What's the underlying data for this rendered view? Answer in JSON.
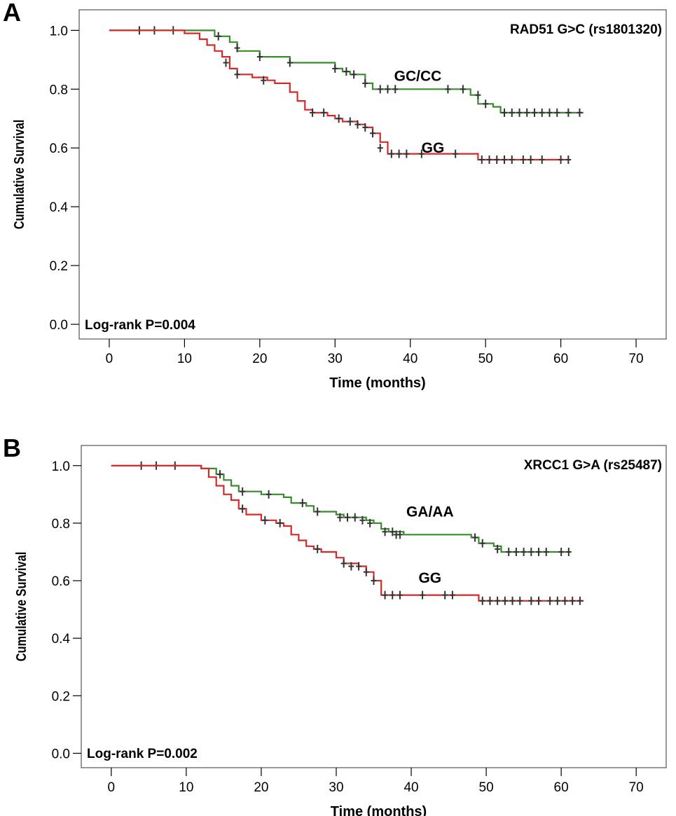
{
  "chart_data": [
    {
      "type": "line",
      "panel_label": "A",
      "title": "RAD51 G>C (rs1801320)",
      "xlabel": "Time (months)",
      "ylabel": "Cumulative Survival",
      "xlim": [
        -4,
        74
      ],
      "ylim": [
        -0.05,
        1.07
      ],
      "xticks": [
        0,
        10,
        20,
        30,
        40,
        50,
        60,
        70
      ],
      "yticks": [
        0.0,
        0.2,
        0.4,
        0.6,
        0.8,
        1.0
      ],
      "ytick_labels": [
        "0.0",
        "0.2",
        "0.4",
        "0.6",
        "0.8",
        "1.0"
      ],
      "annotation": "Log-rank P=0.004",
      "grid": false,
      "series": [
        {
          "name": "GC/CC",
          "color": "#3a8a2e",
          "label_pos": [
            41,
            0.845
          ],
          "steps": [
            [
              0,
              1.0
            ],
            [
              14,
              0.98
            ],
            [
              16,
              0.96
            ],
            [
              17,
              0.93
            ],
            [
              20,
              0.91
            ],
            [
              24,
              0.89
            ],
            [
              30,
              0.87
            ],
            [
              31,
              0.86
            ],
            [
              32,
              0.85
            ],
            [
              34,
              0.82
            ],
            [
              35,
              0.8
            ],
            [
              48,
              0.78
            ],
            [
              49,
              0.75
            ],
            [
              51,
              0.74
            ],
            [
              52,
              0.72
            ],
            [
              63,
              0.72
            ]
          ],
          "censored": [
            [
              4,
              1.0
            ],
            [
              6,
              1.0
            ],
            [
              8.5,
              1.0
            ],
            [
              14.5,
              0.98
            ],
            [
              17,
              0.94
            ],
            [
              20,
              0.91
            ],
            [
              24,
              0.89
            ],
            [
              30,
              0.87
            ],
            [
              31.5,
              0.86
            ],
            [
              32.5,
              0.85
            ],
            [
              34,
              0.82
            ],
            [
              36,
              0.8
            ],
            [
              37,
              0.8
            ],
            [
              38,
              0.8
            ],
            [
              45,
              0.8
            ],
            [
              47,
              0.8
            ],
            [
              49,
              0.78
            ],
            [
              50,
              0.75
            ],
            [
              52.5,
              0.72
            ],
            [
              53.5,
              0.72
            ],
            [
              54.5,
              0.72
            ],
            [
              55.5,
              0.72
            ],
            [
              56.5,
              0.72
            ],
            [
              57.5,
              0.72
            ],
            [
              58.5,
              0.72
            ],
            [
              59.5,
              0.72
            ],
            [
              61,
              0.72
            ],
            [
              62.5,
              0.72
            ]
          ]
        },
        {
          "name": "GG",
          "color": "#d42a2a",
          "label_pos": [
            43,
            0.6
          ],
          "steps": [
            [
              0,
              1.0
            ],
            [
              10,
              0.99
            ],
            [
              12,
              0.97
            ],
            [
              13,
              0.95
            ],
            [
              14,
              0.93
            ],
            [
              15,
              0.91
            ],
            [
              16,
              0.87
            ],
            [
              17,
              0.85
            ],
            [
              19,
              0.84
            ],
            [
              21,
              0.83
            ],
            [
              22,
              0.82
            ],
            [
              24,
              0.79
            ],
            [
              25,
              0.76
            ],
            [
              26,
              0.73
            ],
            [
              27,
              0.72
            ],
            [
              29,
              0.71
            ],
            [
              30,
              0.7
            ],
            [
              31,
              0.69
            ],
            [
              33,
              0.68
            ],
            [
              34,
              0.67
            ],
            [
              35,
              0.65
            ],
            [
              36,
              0.62
            ],
            [
              37,
              0.58
            ],
            [
              49,
              0.56
            ],
            [
              61,
              0.56
            ]
          ],
          "censored": [
            [
              15.5,
              0.89
            ],
            [
              17,
              0.85
            ],
            [
              20.5,
              0.83
            ],
            [
              27,
              0.72
            ],
            [
              28.5,
              0.72
            ],
            [
              30.5,
              0.7
            ],
            [
              32,
              0.69
            ],
            [
              33,
              0.68
            ],
            [
              34,
              0.67
            ],
            [
              35,
              0.65
            ],
            [
              36,
              0.6
            ],
            [
              37.5,
              0.58
            ],
            [
              38.5,
              0.58
            ],
            [
              39.5,
              0.58
            ],
            [
              41.5,
              0.58
            ],
            [
              46,
              0.58
            ],
            [
              49.5,
              0.56
            ],
            [
              50.5,
              0.56
            ],
            [
              51.5,
              0.56
            ],
            [
              52.5,
              0.56
            ],
            [
              53.5,
              0.56
            ],
            [
              55,
              0.56
            ],
            [
              56,
              0.56
            ],
            [
              57.5,
              0.56
            ],
            [
              60,
              0.56
            ],
            [
              61,
              0.56
            ]
          ]
        }
      ]
    },
    {
      "type": "line",
      "panel_label": "B",
      "title": "XRCC1 G>A (rs25487)",
      "xlabel": "Time (months)",
      "ylabel": "Cumulative Survival",
      "xlim": [
        -4,
        74
      ],
      "ylim": [
        -0.05,
        1.07
      ],
      "xticks": [
        0,
        10,
        20,
        30,
        40,
        50,
        60,
        70
      ],
      "yticks": [
        0.0,
        0.2,
        0.4,
        0.6,
        0.8,
        1.0
      ],
      "ytick_labels": [
        "0.0",
        "0.2",
        "0.4",
        "0.6",
        "0.8",
        "1.0"
      ],
      "annotation": "Log-rank P=0.002",
      "grid": false,
      "series": [
        {
          "name": "GA/AA",
          "color": "#3a8a2e",
          "label_pos": [
            42.5,
            0.84
          ],
          "steps": [
            [
              0,
              1.0
            ],
            [
              12,
              0.99
            ],
            [
              14,
              0.97
            ],
            [
              15,
              0.95
            ],
            [
              16,
              0.93
            ],
            [
              17,
              0.91
            ],
            [
              20,
              0.9
            ],
            [
              23,
              0.89
            ],
            [
              24,
              0.87
            ],
            [
              26,
              0.86
            ],
            [
              27,
              0.84
            ],
            [
              30,
              0.83
            ],
            [
              31,
              0.82
            ],
            [
              34,
              0.81
            ],
            [
              35,
              0.8
            ],
            [
              36,
              0.78
            ],
            [
              37,
              0.77
            ],
            [
              39,
              0.76
            ],
            [
              48,
              0.75
            ],
            [
              49,
              0.73
            ],
            [
              51,
              0.72
            ],
            [
              52,
              0.7
            ],
            [
              61,
              0.7
            ]
          ],
          "censored": [
            [
              4,
              1.0
            ],
            [
              6,
              1.0
            ],
            [
              8.5,
              1.0
            ],
            [
              14.5,
              0.97
            ],
            [
              17.5,
              0.91
            ],
            [
              21,
              0.9
            ],
            [
              25.5,
              0.87
            ],
            [
              27.5,
              0.84
            ],
            [
              30.5,
              0.82
            ],
            [
              31.5,
              0.82
            ],
            [
              32.5,
              0.82
            ],
            [
              33.5,
              0.81
            ],
            [
              34.5,
              0.8
            ],
            [
              36.5,
              0.77
            ],
            [
              37.5,
              0.77
            ],
            [
              38,
              0.76
            ],
            [
              38.5,
              0.76
            ],
            [
              48.5,
              0.75
            ],
            [
              49.5,
              0.73
            ],
            [
              51.5,
              0.71
            ],
            [
              53,
              0.7
            ],
            [
              54,
              0.7
            ],
            [
              55,
              0.7
            ],
            [
              56,
              0.7
            ],
            [
              57,
              0.7
            ],
            [
              58,
              0.7
            ],
            [
              60,
              0.7
            ],
            [
              61,
              0.7
            ]
          ]
        },
        {
          "name": "GG",
          "color": "#d42a2a",
          "label_pos": [
            42.5,
            0.61
          ],
          "steps": [
            [
              0,
              1.0
            ],
            [
              12,
              0.99
            ],
            [
              13,
              0.96
            ],
            [
              14,
              0.93
            ],
            [
              15,
              0.9
            ],
            [
              16,
              0.88
            ],
            [
              17,
              0.85
            ],
            [
              18,
              0.83
            ],
            [
              20,
              0.81
            ],
            [
              22,
              0.8
            ],
            [
              23,
              0.79
            ],
            [
              24,
              0.76
            ],
            [
              25,
              0.74
            ],
            [
              26,
              0.72
            ],
            [
              27,
              0.71
            ],
            [
              28,
              0.7
            ],
            [
              30,
              0.68
            ],
            [
              31,
              0.66
            ],
            [
              33,
              0.65
            ],
            [
              34,
              0.63
            ],
            [
              35,
              0.6
            ],
            [
              36,
              0.55
            ],
            [
              49,
              0.53
            ],
            [
              63,
              0.53
            ]
          ],
          "censored": [
            [
              17.5,
              0.85
            ],
            [
              20.5,
              0.81
            ],
            [
              22.5,
              0.8
            ],
            [
              27.5,
              0.71
            ],
            [
              31,
              0.66
            ],
            [
              32,
              0.65
            ],
            [
              33,
              0.65
            ],
            [
              34,
              0.63
            ],
            [
              35,
              0.6
            ],
            [
              36.5,
              0.55
            ],
            [
              37.5,
              0.55
            ],
            [
              38.5,
              0.55
            ],
            [
              41.5,
              0.55
            ],
            [
              44.5,
              0.55
            ],
            [
              45.5,
              0.55
            ],
            [
              49.5,
              0.53
            ],
            [
              50.5,
              0.53
            ],
            [
              51.5,
              0.53
            ],
            [
              52.5,
              0.53
            ],
            [
              53.5,
              0.53
            ],
            [
              54.5,
              0.53
            ],
            [
              56,
              0.53
            ],
            [
              57,
              0.53
            ],
            [
              58.5,
              0.53
            ],
            [
              59.5,
              0.53
            ],
            [
              60.5,
              0.53
            ],
            [
              61.5,
              0.53
            ],
            [
              62.5,
              0.53
            ]
          ]
        }
      ]
    }
  ]
}
